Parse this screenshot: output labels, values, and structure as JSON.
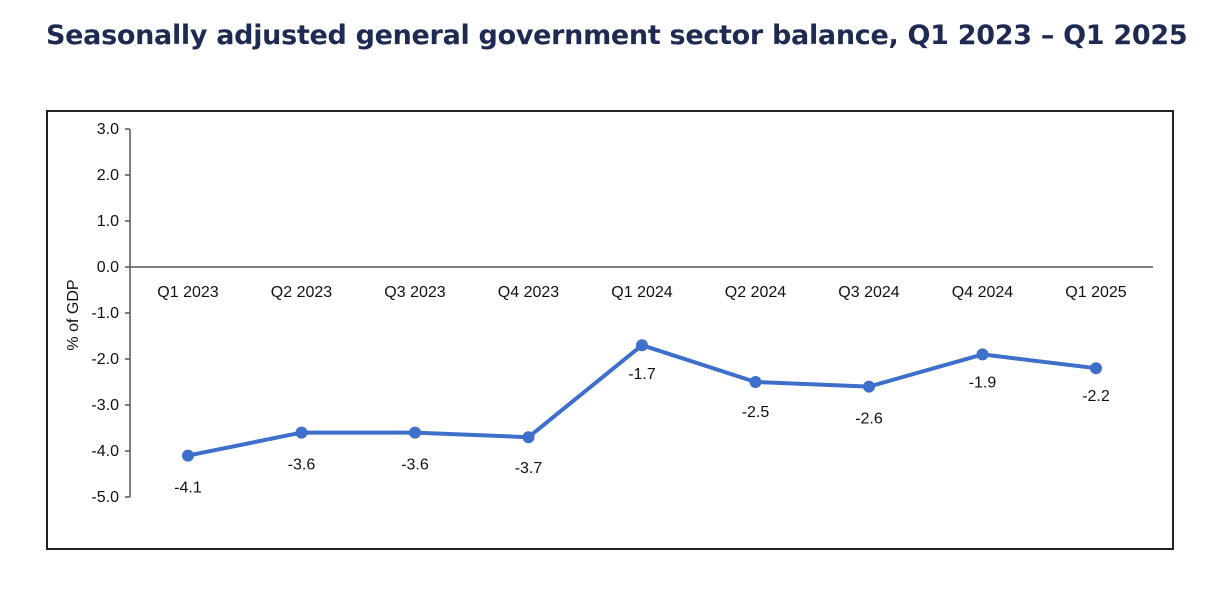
{
  "title": "Seasonally adjusted general government sector balance, Q1 2023 – Q1 2025",
  "chart_data": {
    "type": "line",
    "title": "Seasonally adjusted general government sector balance, Q1 2023 – Q1 2025",
    "xlabel": "",
    "ylabel": "% of GDP",
    "categories": [
      "Q1 2023",
      "Q2 2023",
      "Q3 2023",
      "Q4 2023",
      "Q1 2024",
      "Q2 2024",
      "Q3 2024",
      "Q4 2024",
      "Q1 2025"
    ],
    "series": [
      {
        "values": [
          -4.1,
          -3.6,
          -3.6,
          -3.7,
          -1.7,
          -2.5,
          -2.6,
          -1.9,
          -2.2
        ]
      }
    ],
    "data_labels": [
      "-4.1",
      "-3.6",
      "-3.6",
      "-3.7",
      "-1.7",
      "-2.5",
      "-2.6",
      "-1.9",
      "-2.2"
    ],
    "ylim": [
      -5.0,
      3.0
    ],
    "yticks": [
      "3.0",
      "2.0",
      "1.0",
      "0.0",
      "-1.0",
      "-2.0",
      "-3.0",
      "-4.0",
      "-5.0"
    ],
    "ytick_values": [
      3,
      2,
      1,
      0,
      -1,
      -2,
      -3,
      -4,
      -5
    ],
    "grid": false,
    "legend": "none",
    "line_color": "#3d6fcb"
  }
}
